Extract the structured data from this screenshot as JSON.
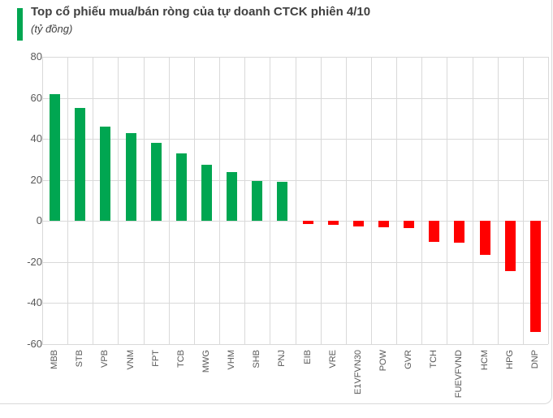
{
  "header": {
    "title": "Top cổ phiếu mua/bán ròng của tự doanh CTCK phiên 4/10",
    "subtitle": "(tỷ đồng)"
  },
  "chart_data": {
    "type": "bar",
    "title": "Top cổ phiếu mua/bán ròng của tự doanh CTCK phiên 4/10",
    "unit_label": "(tỷ đồng)",
    "categories": [
      "MBB",
      "STB",
      "VPB",
      "VNM",
      "FPT",
      "TCB",
      "MWG",
      "VHM",
      "SHB",
      "PNJ",
      "EIB",
      "VRE",
      "E1VFVN30",
      "POW",
      "GVR",
      "TCH",
      "FUEVFVND",
      "HCM",
      "HPG",
      "DNP"
    ],
    "values": [
      62,
      55,
      46,
      43,
      38,
      33,
      27.5,
      24,
      19.5,
      19,
      -1.5,
      -2,
      -2.5,
      -3,
      -3.5,
      -10,
      -10.5,
      -16.5,
      -24.5,
      -54
    ],
    "yticks": [
      80,
      60,
      40,
      20,
      0,
      -20,
      -40,
      -60
    ],
    "ylim": [
      -60,
      80
    ],
    "xlabel": "",
    "ylabel": "",
    "grid": true,
    "legend": "none",
    "colors": {
      "positive": "#00A651",
      "negative": "#FF0000",
      "grid": "#D9D9D9",
      "axis_text": "#595959",
      "title_text": "#404040"
    }
  }
}
